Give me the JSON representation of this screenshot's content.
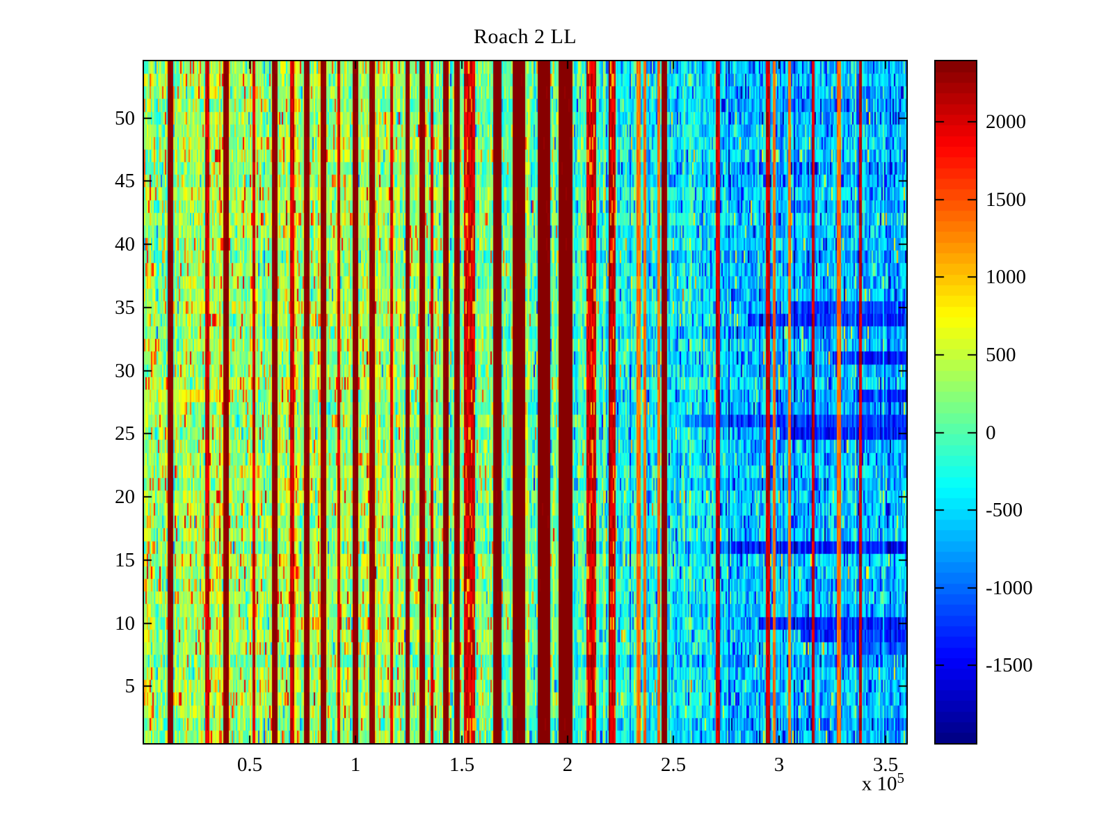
{
  "figure": {
    "background_color": "#ffffff",
    "axis_color": "#000000"
  },
  "chart_data": {
    "type": "heatmap",
    "title": "Roach 2 LL",
    "colormap": "jet",
    "color_levels": 64,
    "grid": "off",
    "legend": "colorbar-right",
    "x_axis": {
      "label": "",
      "unit_scale": 100000,
      "offset_label": "x 10",
      "offset_exponent": "5",
      "min": 0,
      "max": 3.6,
      "tick_values": [
        0.5,
        1,
        1.5,
        2,
        2.5,
        3,
        3.5
      ],
      "tick_labels": [
        "0.5",
        "1",
        "1.5",
        "2",
        "2.5",
        "3",
        "3.5"
      ]
    },
    "y_axis": {
      "label": "",
      "min": 0.5,
      "max": 54.5,
      "rows": 54,
      "tick_values": [
        5,
        10,
        15,
        20,
        25,
        30,
        35,
        40,
        45,
        50
      ],
      "tick_labels": [
        "5",
        "10",
        "15",
        "20",
        "25",
        "30",
        "35",
        "40",
        "45",
        "50"
      ]
    },
    "colorbar": {
      "min": -2000,
      "max": 2390,
      "tick_values": [
        2000,
        1500,
        1000,
        500,
        0,
        -500,
        -1000,
        -1500
      ],
      "tick_labels": [
        "2000",
        "1500",
        "1000",
        "500",
        "0",
        "-500",
        "-1000",
        "-1500"
      ],
      "top_color": "#800000",
      "bottom_color": "#000080"
    },
    "texture_model": {
      "seed": 1337,
      "cols": 548,
      "rows": 54,
      "trend_points": [
        [
          0,
          360
        ],
        [
          0.5,
          330
        ],
        [
          1.0,
          255
        ],
        [
          1.5,
          170
        ],
        [
          2.0,
          60
        ],
        [
          2.2,
          -120
        ],
        [
          2.5,
          -380
        ],
        [
          2.8,
          -510
        ],
        [
          3.2,
          -610
        ],
        [
          3.6,
          -650
        ]
      ],
      "cell_noise_sd": 265,
      "col_bias_sd": 150,
      "row_bias_sd": 65,
      "strong_col_prob": 0.06,
      "strong_col_amp": 340,
      "hot_spike_prob_left": 0.1,
      "cold_spike_prob_right": 0.08,
      "maroon_bands": [
        [
          1.648,
          1.688
        ],
        [
          1.742,
          1.803
        ],
        [
          1.862,
          1.917
        ],
        [
          1.957,
          2.023
        ]
      ],
      "red_bands": [
        [
          1.508,
          1.562
        ],
        [
          2.088,
          2.132
        ],
        [
          2.198,
          2.225
        ]
      ],
      "dark_lines": [
        0.125,
        0.385,
        0.615,
        0.77,
        0.845,
        1.0,
        1.075,
        1.245,
        1.315,
        1.425,
        1.475,
        2.21,
        2.46
      ],
      "red_lines": [
        0.3,
        0.52,
        0.7,
        0.92,
        1.17,
        1.36,
        2.71,
        2.945,
        3.16,
        3.385
      ],
      "orange_lines": [
        2.335,
        2.365,
        2.43,
        2.975,
        3.05,
        3.28
      ],
      "blue_row_streaks": [
        {
          "row": 35,
          "from": 3.05,
          "to": 3.6,
          "offset": -680
        },
        {
          "row": 34,
          "from": 2.85,
          "to": 3.6,
          "offset": -700
        },
        {
          "row": 31,
          "from": 3.25,
          "to": 3.6,
          "offset": -720
        },
        {
          "row": 28,
          "from": 3.35,
          "to": 3.6,
          "offset": -600
        },
        {
          "row": 26,
          "from": 2.55,
          "to": 3.6,
          "offset": -620
        },
        {
          "row": 25,
          "from": 3.0,
          "to": 3.6,
          "offset": -680
        },
        {
          "row": 16,
          "from": 2.8,
          "to": 3.6,
          "offset": -620
        },
        {
          "row": 10,
          "from": 2.9,
          "to": 3.6,
          "offset": -750
        },
        {
          "row": 9,
          "from": 3.1,
          "to": 3.6,
          "offset": -760
        },
        {
          "row": 8,
          "from": 3.3,
          "to": 3.6,
          "offset": -600
        }
      ],
      "warm_row_streaks": [
        {
          "row": 28,
          "from": 0,
          "to": 0.38,
          "offset": 440
        },
        {
          "row": 27,
          "from": 0,
          "to": 0.2,
          "offset": 280
        }
      ]
    }
  }
}
